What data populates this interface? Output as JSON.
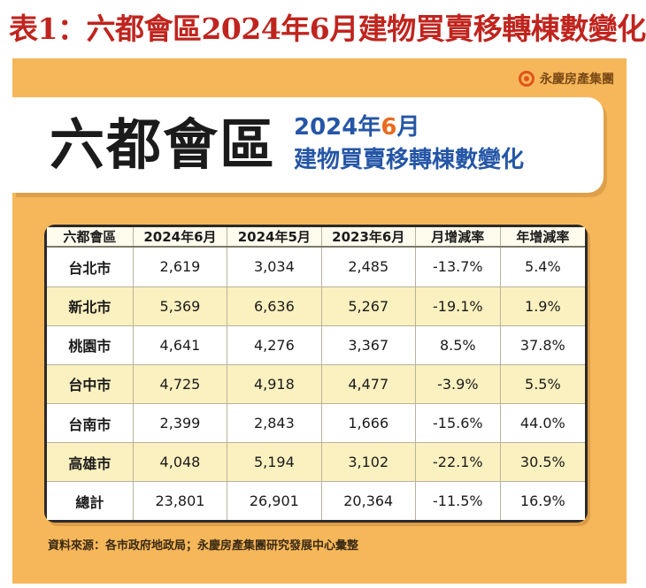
{
  "caption": "表1：六都會區2024年6月建物買賣移轉棟數變化",
  "brand": {
    "name": "永慶房產集團",
    "logo_icon": "yungching-logo-icon"
  },
  "banner": {
    "title": "六都會區",
    "date_prefix": "2024年",
    "date_month": "6",
    "date_suffix": "月",
    "subtitle": "建物買賣移轉棟數變化"
  },
  "table": {
    "headers": [
      "六都會區",
      "2024年6月",
      "2024年5月",
      "2023年6月",
      "月增減率",
      "年增減率"
    ],
    "rows": [
      [
        "台北市",
        "2,619",
        "3,034",
        "2,485",
        "-13.7%",
        "5.4%"
      ],
      [
        "新北市",
        "5,369",
        "6,636",
        "5,267",
        "-19.1%",
        "1.9%"
      ],
      [
        "桃園市",
        "4,641",
        "4,276",
        "3,367",
        "8.5%",
        "37.8%"
      ],
      [
        "台中市",
        "4,725",
        "4,918",
        "4,477",
        "-3.9%",
        "5.5%"
      ],
      [
        "台南市",
        "2,399",
        "2,843",
        "1,666",
        "-15.6%",
        "44.0%"
      ],
      [
        "高雄市",
        "4,048",
        "5,194",
        "3,102",
        "-22.1%",
        "30.5%"
      ],
      [
        "總計",
        "23,801",
        "26,901",
        "20,364",
        "-11.5%",
        "16.9%"
      ]
    ]
  },
  "source": "資料來源：各市政府地政局；永慶房產集團研究發展中心彙整",
  "colors": {
    "caption": "#c0241e",
    "card": "#f6b75a",
    "subtitle": "#2556a6",
    "accent": "#ea6b1f"
  }
}
